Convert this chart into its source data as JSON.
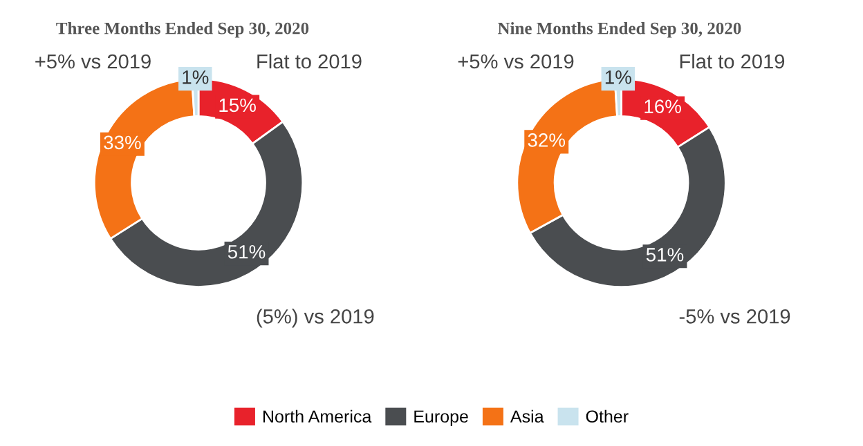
{
  "chart_data": [
    {
      "type": "donut",
      "title": "Three Months Ended Sep 30, 2020",
      "categories": [
        "North America",
        "Europe",
        "Asia",
        "Other"
      ],
      "values": [
        15,
        51,
        33,
        1
      ],
      "value_labels": [
        "15%",
        "51%",
        "33%",
        "1%"
      ],
      "colors": [
        "#e8222b",
        "#4a4d50",
        "#f47216",
        "#c9e3ee"
      ],
      "legend": "bottom",
      "annotations": [
        "Flat to 2019",
        "(5%) vs 2019",
        "+5% vs 2019"
      ]
    },
    {
      "type": "donut",
      "title": "Nine Months Ended Sep 30, 2020",
      "categories": [
        null,
        null,
        null,
        null
      ],
      "values": [
        16,
        51,
        32,
        1
      ],
      "value_labels": [
        "16%",
        "51%",
        "32%",
        "1%"
      ],
      "colors": [
        "#e8222b",
        "#4a4d50",
        "#f47216",
        "#c9e3ee"
      ],
      "annotations": [
        "Flat to 2019",
        "-5% vs 2019",
        "+5% vs 2019"
      ]
    }
  ]
}
